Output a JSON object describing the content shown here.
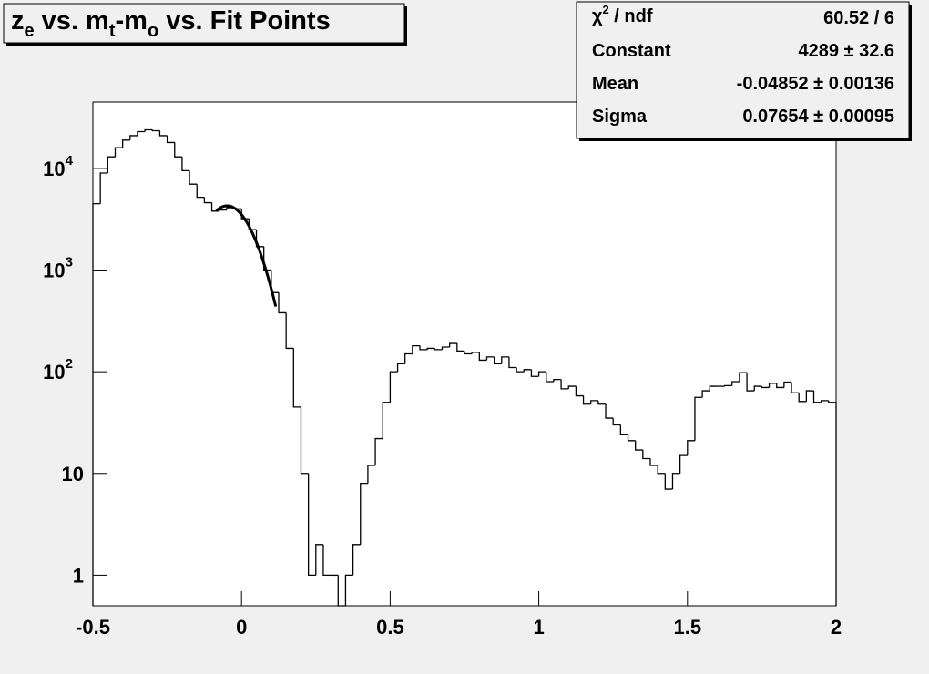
{
  "chart_data": {
    "type": "histogram",
    "title": [
      {
        "text": "z"
      },
      {
        "text": "e",
        "sub": true
      },
      {
        "text": " vs. m"
      },
      {
        "text": "t",
        "sub": true
      },
      {
        "text": "-m"
      },
      {
        "text": "o",
        "sub": true
      },
      {
        "text": " vs. Fit Points"
      }
    ],
    "bins": [
      -0.5,
      -0.475,
      -0.45,
      -0.425,
      -0.4,
      -0.375,
      -0.35,
      -0.325,
      -0.3,
      -0.275,
      -0.25,
      -0.225,
      -0.2,
      -0.175,
      -0.15,
      -0.125,
      -0.1,
      -0.075,
      -0.05,
      -0.025,
      0,
      0.025,
      0.05,
      0.075,
      0.1,
      0.125,
      0.15,
      0.175,
      0.2,
      0.225,
      0.25,
      0.275,
      0.3,
      0.325,
      0.35,
      0.375,
      0.4,
      0.425,
      0.45,
      0.475,
      0.5,
      0.525,
      0.55,
      0.575,
      0.6,
      0.625,
      0.65,
      0.675,
      0.7,
      0.725,
      0.75,
      0.775,
      0.8,
      0.825,
      0.85,
      0.875,
      0.9,
      0.925,
      0.95,
      0.975,
      1,
      1.025,
      1.05,
      1.075,
      1.1,
      1.125,
      1.15,
      1.175,
      1.2,
      1.225,
      1.25,
      1.275,
      1.3,
      1.325,
      1.35,
      1.375,
      1.4,
      1.425,
      1.45,
      1.475,
      1.5,
      1.525,
      1.55,
      1.575,
      1.6,
      1.625,
      1.65,
      1.675,
      1.7,
      1.725,
      1.75,
      1.775,
      1.8,
      1.825,
      1.85,
      1.875,
      1.9,
      1.925,
      1.95,
      1.975,
      2
    ],
    "counts": [
      4500,
      9000,
      13000,
      16000,
      19000,
      21000,
      23000,
      24000,
      23500,
      21000,
      18000,
      13000,
      9500,
      7000,
      5200,
      4600,
      3800,
      3900,
      4100,
      4000,
      3200,
      2500,
      1700,
      1000,
      600,
      380,
      170,
      45,
      10,
      1,
      2,
      1,
      1,
      0,
      1,
      2,
      8,
      12,
      22,
      50,
      100,
      120,
      150,
      180,
      165,
      170,
      165,
      175,
      190,
      160,
      150,
      155,
      130,
      140,
      120,
      140,
      110,
      100,
      105,
      90,
      100,
      80,
      84,
      68,
      72,
      58,
      48,
      52,
      48,
      35,
      30,
      24,
      21,
      17,
      14,
      12,
      10,
      7,
      10,
      15,
      21,
      56,
      65,
      72,
      72,
      73,
      80,
      98,
      65,
      72,
      70,
      77,
      70,
      79,
      62,
      51,
      65,
      50,
      52,
      50
    ],
    "color": "#000000",
    "log_y": true,
    "xlim": [
      -0.5,
      2
    ],
    "ylim": [
      0.5,
      45000
    ],
    "xticks": [
      -0.5,
      0,
      0.5,
      1,
      1.5,
      2
    ],
    "yticks": [
      1,
      10,
      {
        "value": 100,
        "label": "10",
        "exponent": "2"
      },
      {
        "value": 1000,
        "label": "10",
        "exponent": "3"
      },
      {
        "value": 10000,
        "label": "10",
        "exponent": "4"
      }
    ],
    "fit": {
      "constant": 4289,
      "mean": -0.04852,
      "sigma": 0.07654,
      "range": [
        -0.085,
        0.115
      ],
      "color": "#000000"
    },
    "stats": [
      {
        "label": [
          "χ",
          "2",
          " / ndf"
        ],
        "value": "60.52 / 6"
      },
      {
        "label": [
          "Constant"
        ],
        "value": "4289 ± 32.6"
      },
      {
        "label": [
          "Mean"
        ],
        "value": "-0.04852 ± 0.00136"
      },
      {
        "label": [
          "Sigma"
        ],
        "value": "0.07654 ± 0.00095"
      }
    ]
  }
}
